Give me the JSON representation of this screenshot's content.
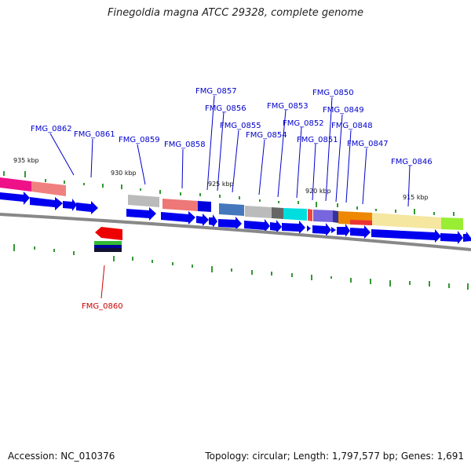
{
  "title": "Finegoldia magna ATCC 29328, complete genome",
  "accession_label": "Accession: NC_010376",
  "summary_label": "Topology: circular; Length: 1,797,577 bp; Genes: 1,691",
  "colors": {
    "label_forward": "#0000cc",
    "label_reverse": "#cc0000",
    "gene_arrow": "#0000ee",
    "gc_tick": "#339933",
    "backbone": "#888888"
  },
  "scale_ticks": [
    "935 kbp",
    "930 kbp",
    "925 kbp",
    "920 kbp",
    "915 kbp"
  ],
  "genes_forward": [
    "FMG_0862",
    "FMG_0861",
    "FMG_0859",
    "FMG_0858",
    "FMG_0857",
    "FMG_0856",
    "FMG_0855",
    "FMG_0854",
    "FMG_0853",
    "FMG_0852",
    "FMG_0851",
    "FMG_0850",
    "FMG_0849",
    "FMG_0848",
    "FMG_0847",
    "FMG_0846"
  ],
  "genes_reverse": [
    "FMG_0860"
  ]
}
